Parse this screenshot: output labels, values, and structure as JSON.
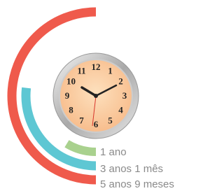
{
  "chart_data": {
    "type": "radial-bar",
    "categories": [
      "1 ano",
      "3 anos 1 mês",
      "5 anos 9 meses"
    ],
    "values": [
      12,
      37,
      69
    ],
    "value_labels": [
      "1 ano",
      "3 anos 1 mês",
      "5 anos 9 meses"
    ],
    "colors": [
      "#a9d18e",
      "#5ec7d3",
      "#ef5a4c"
    ]
  },
  "clock": {
    "numerals": [
      12,
      1,
      2,
      3,
      4,
      5,
      6,
      7,
      8,
      9,
      10,
      11
    ]
  }
}
